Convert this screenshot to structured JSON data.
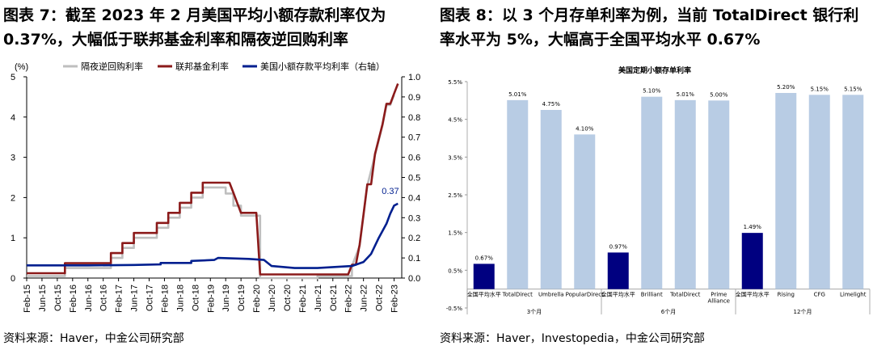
{
  "left_panel": {
    "title": "图表 7：截至 2023 年 2 月美国平均小额存款利率仅为 0.37%，大幅低于联邦基金利率和隔夜逆回购利率",
    "source": "资料来源：Haver，中金公司研究部"
  },
  "right_panel": {
    "title": "图表 8：以 3 个月存单利率为例，当前 TotalDirect 银行利率水平为 5%，大幅高于全国平均水平 0.67%",
    "source": "资料来源：Haver，Investopedia，中金公司研究部"
  },
  "chart_data": [
    {
      "type": "line",
      "unit_label": "(%)",
      "x_ticks": [
        "Feb-15",
        "Jun-15",
        "Oct-15",
        "Feb-16",
        "Jun-16",
        "Oct-16",
        "Feb-17",
        "Jun-17",
        "Oct-17",
        "Feb-18",
        "Jun-18",
        "Oct-18",
        "Feb-19",
        "Jun-19",
        "Oct-19",
        "Feb-20",
        "Jun-20",
        "Oct-20",
        "Feb-21",
        "Jun-21",
        "Oct-21",
        "Feb-22",
        "Jun-22",
        "Oct-22",
        "Feb-23"
      ],
      "ylim_left": [
        0,
        5
      ],
      "y_ticks_left": [
        "0",
        "1",
        "2",
        "3",
        "4",
        "5"
      ],
      "ylim_right": [
        0,
        1.0
      ],
      "y_ticks_right": [
        "0.0",
        "0.1",
        "0.2",
        "0.3",
        "0.4",
        "0.5",
        "0.6",
        "0.7",
        "0.8",
        "0.9",
        "1.0"
      ],
      "annotation": "0.37",
      "legend_position": "top",
      "series": [
        {
          "name": "隔夜逆回购利率",
          "color": "#bfbfbf",
          "axis": "left",
          "points": [
            [
              "2015-02",
              0.05
            ],
            [
              "2015-12",
              0.05
            ],
            [
              "2015-12",
              0.25
            ],
            [
              "2016-12",
              0.25
            ],
            [
              "2016-12",
              0.5
            ],
            [
              "2017-03",
              0.5
            ],
            [
              "2017-03",
              0.75
            ],
            [
              "2017-06",
              0.75
            ],
            [
              "2017-06",
              1.0
            ],
            [
              "2017-12",
              1.0
            ],
            [
              "2017-12",
              1.25
            ],
            [
              "2018-03",
              1.25
            ],
            [
              "2018-03",
              1.5
            ],
            [
              "2018-06",
              1.5
            ],
            [
              "2018-06",
              1.75
            ],
            [
              "2018-09",
              1.75
            ],
            [
              "2018-09",
              2.0
            ],
            [
              "2018-12",
              2.0
            ],
            [
              "2018-12",
              2.25
            ],
            [
              "2019-06",
              2.25
            ],
            [
              "2019-06",
              2.1
            ],
            [
              "2019-08",
              2.1
            ],
            [
              "2019-08",
              1.8
            ],
            [
              "2019-10",
              1.8
            ],
            [
              "2019-10",
              1.55
            ],
            [
              "2020-03",
              1.55
            ],
            [
              "2020-03",
              0.0
            ],
            [
              "2021-06",
              0.0
            ],
            [
              "2021-06",
              0.05
            ],
            [
              "2022-03",
              0.05
            ],
            [
              "2022-03",
              0.3
            ],
            [
              "2022-05",
              0.8
            ],
            [
              "2022-06",
              1.55
            ],
            [
              "2022-07",
              2.3
            ],
            [
              "2022-09",
              3.05
            ],
            [
              "2022-11",
              3.8
            ],
            [
              "2022-12",
              4.3
            ],
            [
              "2023-01",
              4.3
            ],
            [
              "2023-02",
              4.55
            ]
          ]
        },
        {
          "name": "联邦基金利率",
          "color": "#8b1a1a",
          "axis": "left",
          "points": [
            [
              "2015-02",
              0.12
            ],
            [
              "2015-12",
              0.12
            ],
            [
              "2015-12",
              0.37
            ],
            [
              "2016-12",
              0.37
            ],
            [
              "2016-12",
              0.62
            ],
            [
              "2017-03",
              0.62
            ],
            [
              "2017-03",
              0.87
            ],
            [
              "2017-06",
              0.87
            ],
            [
              "2017-06",
              1.12
            ],
            [
              "2017-12",
              1.12
            ],
            [
              "2017-12",
              1.37
            ],
            [
              "2018-03",
              1.37
            ],
            [
              "2018-03",
              1.62
            ],
            [
              "2018-06",
              1.62
            ],
            [
              "2018-06",
              1.87
            ],
            [
              "2018-09",
              1.87
            ],
            [
              "2018-09",
              2.12
            ],
            [
              "2018-12",
              2.12
            ],
            [
              "2018-12",
              2.37
            ],
            [
              "2019-07",
              2.37
            ],
            [
              "2019-08",
              2.12
            ],
            [
              "2019-09",
              1.87
            ],
            [
              "2019-10",
              1.62
            ],
            [
              "2020-02",
              1.62
            ],
            [
              "2020-03",
              0.09
            ],
            [
              "2020-12",
              0.09
            ],
            [
              "2021-06",
              0.09
            ],
            [
              "2022-02",
              0.09
            ],
            [
              "2022-03",
              0.33
            ],
            [
              "2022-04",
              0.33
            ],
            [
              "2022-05",
              0.83
            ],
            [
              "2022-06",
              1.58
            ],
            [
              "2022-07",
              2.33
            ],
            [
              "2022-08",
              2.33
            ],
            [
              "2022-09",
              3.08
            ],
            [
              "2022-11",
              3.83
            ],
            [
              "2022-12",
              4.33
            ],
            [
              "2023-01",
              4.33
            ],
            [
              "2023-02",
              4.58
            ],
            [
              "2023-03",
              4.83
            ]
          ]
        },
        {
          "name": "美国小额存款平均利率（右轴）",
          "color": "#001f8f",
          "axis": "right",
          "points": [
            [
              "2015-02",
              0.063
            ],
            [
              "2016-06",
              0.063
            ],
            [
              "2017-06",
              0.065
            ],
            [
              "2018-01",
              0.068
            ],
            [
              "2018-01",
              0.075
            ],
            [
              "2018-09",
              0.075
            ],
            [
              "2018-09",
              0.085
            ],
            [
              "2019-03",
              0.09
            ],
            [
              "2019-04",
              0.1
            ],
            [
              "2019-12",
              0.095
            ],
            [
              "2020-04",
              0.09
            ],
            [
              "2020-06",
              0.06
            ],
            [
              "2020-12",
              0.05
            ],
            [
              "2021-06",
              0.05
            ],
            [
              "2022-03",
              0.06
            ],
            [
              "2022-06",
              0.08
            ],
            [
              "2022-08",
              0.12
            ],
            [
              "2022-10",
              0.2
            ],
            [
              "2022-12",
              0.27
            ],
            [
              "2023-01",
              0.32
            ],
            [
              "2023-02",
              0.36
            ],
            [
              "2023-03",
              0.37
            ]
          ]
        }
      ]
    },
    {
      "type": "bar",
      "title": "美国定期小额存单利率",
      "ylim": [
        -0.5,
        5.5
      ],
      "y_ticks": [
        "-0.5%",
        "0.5%",
        "1.5%",
        "2.5%",
        "3.5%",
        "4.5%",
        "5.5%"
      ],
      "groups": [
        "3个月",
        "6个月",
        "12个月"
      ],
      "bars": [
        {
          "label": "全国平均水平",
          "value": 0.67,
          "value_label": "0.67%",
          "group": 0,
          "highlight": true
        },
        {
          "label": "TotalDirect",
          "value": 5.01,
          "value_label": "5.01%",
          "group": 0,
          "highlight": false
        },
        {
          "label": "Umbrella",
          "value": 4.75,
          "value_label": "4.75%",
          "group": 0,
          "highlight": false
        },
        {
          "label": "PopularDirect",
          "value": 4.1,
          "value_label": "4.10%",
          "group": 0,
          "highlight": false
        },
        {
          "label": "全国平均水平",
          "value": 0.97,
          "value_label": "0.97%",
          "group": 1,
          "highlight": true
        },
        {
          "label": "Brilliant",
          "value": 5.1,
          "value_label": "5.10%",
          "group": 1,
          "highlight": false
        },
        {
          "label": "TotalDirect",
          "value": 5.01,
          "value_label": "5.01%",
          "group": 1,
          "highlight": false
        },
        {
          "label": "Prime Alliance",
          "value": 5.0,
          "value_label": "5.00%",
          "group": 1,
          "highlight": false
        },
        {
          "label": "全国平均水平",
          "value": 1.49,
          "value_label": "1.49%",
          "group": 2,
          "highlight": true
        },
        {
          "label": "Rising",
          "value": 5.2,
          "value_label": "5.20%",
          "group": 2,
          "highlight": false
        },
        {
          "label": "CFG",
          "value": 5.15,
          "value_label": "5.15%",
          "group": 2,
          "highlight": false
        },
        {
          "label": "Limelight",
          "value": 5.15,
          "value_label": "5.15%",
          "group": 2,
          "highlight": false
        }
      ],
      "colors": {
        "highlight": "#000080",
        "normal": "#b8cce4"
      }
    }
  ]
}
